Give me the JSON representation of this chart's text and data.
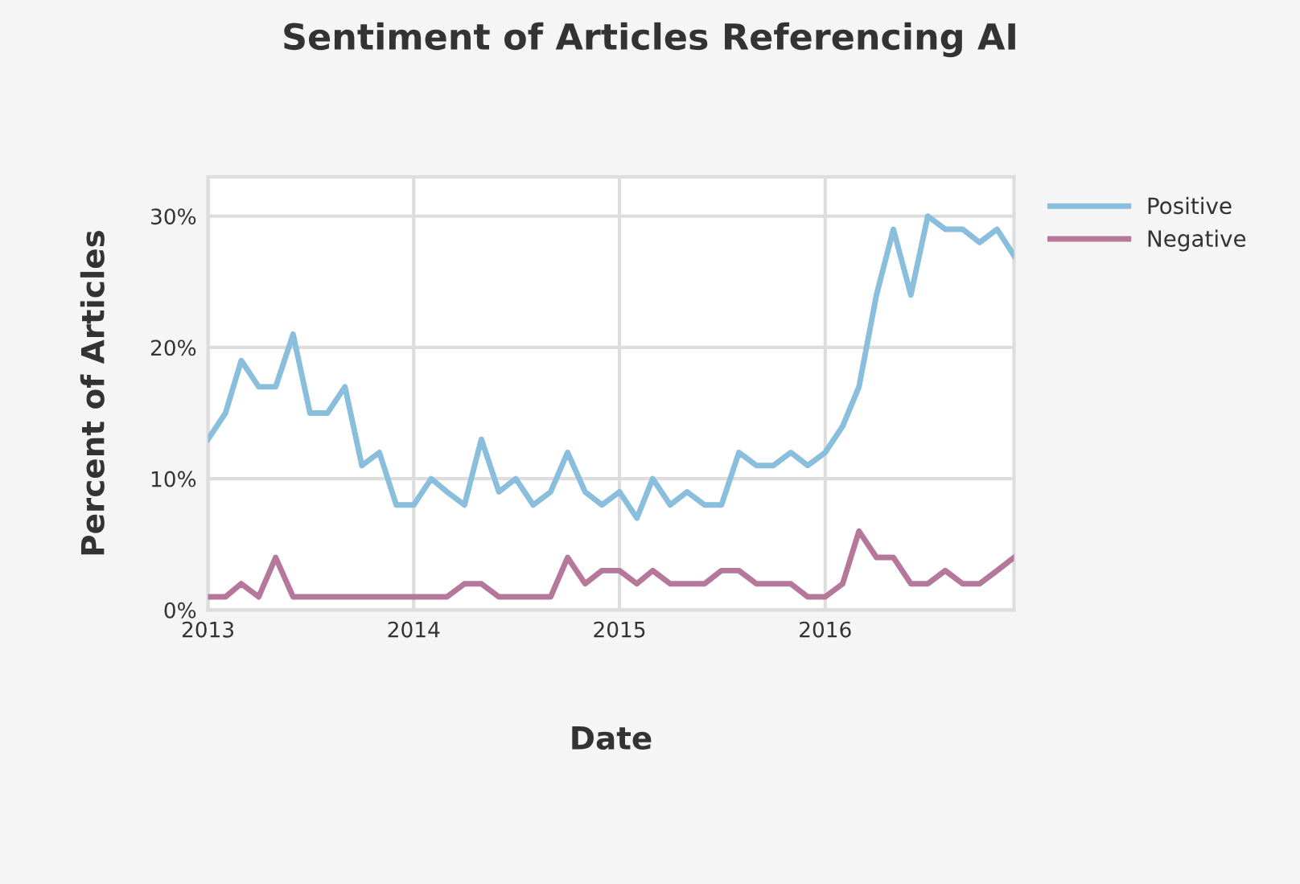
{
  "chart_data": {
    "type": "line",
    "title": "Sentiment of Articles Referencing AI",
    "xlabel": "Date",
    "ylabel": "Percent of Articles",
    "x": [
      "2013-01",
      "2013-02",
      "2013-03",
      "2013-04",
      "2013-05",
      "2013-06",
      "2013-07",
      "2013-08",
      "2013-09",
      "2013-10",
      "2013-11",
      "2013-12",
      "2014-01",
      "2014-02",
      "2014-03",
      "2014-04",
      "2014-05",
      "2014-06",
      "2014-07",
      "2014-08",
      "2014-09",
      "2014-10",
      "2014-11",
      "2014-12",
      "2015-01",
      "2015-02",
      "2015-03",
      "2015-04",
      "2015-05",
      "2015-06",
      "2015-07",
      "2015-08",
      "2015-09",
      "2015-10",
      "2015-11",
      "2015-12",
      "2016-01",
      "2016-02",
      "2016-03",
      "2016-04",
      "2016-05",
      "2016-06",
      "2016-07",
      "2016-08",
      "2016-09",
      "2016-10",
      "2016-11",
      "2016-12"
    ],
    "series": [
      {
        "name": "Positive",
        "color": "#89bedc",
        "values": [
          13,
          15,
          19,
          17,
          17,
          21,
          15,
          15,
          17,
          11,
          12,
          8,
          8,
          10,
          9,
          8,
          13,
          9,
          10,
          8,
          9,
          12,
          9,
          8,
          9,
          7,
          10,
          8,
          9,
          8,
          8,
          12,
          11,
          11,
          12,
          11,
          12,
          14,
          17,
          24,
          29,
          24,
          30,
          29,
          29,
          28,
          29,
          27
        ]
      },
      {
        "name": "Negative",
        "color": "#b5789a",
        "values": [
          1,
          1,
          2,
          1,
          4,
          1,
          1,
          1,
          1,
          1,
          1,
          1,
          1,
          1,
          1,
          2,
          2,
          1,
          1,
          1,
          1,
          4,
          2,
          3,
          3,
          2,
          3,
          2,
          2,
          2,
          3,
          3,
          2,
          2,
          2,
          1,
          1,
          2,
          6,
          4,
          4,
          2,
          2,
          3,
          2,
          2,
          3,
          4
        ]
      }
    ],
    "xlim": [
      "2013-01",
      "2016-12"
    ],
    "xticks": [
      "2013",
      "2014",
      "2015",
      "2016"
    ],
    "ylim": [
      0,
      33
    ],
    "yticks": [
      {
        "value": 0,
        "label": "0%"
      },
      {
        "value": 10,
        "label": "10%"
      },
      {
        "value": 20,
        "label": "20%"
      },
      {
        "value": 30,
        "label": "30%"
      }
    ],
    "grid": true,
    "legend": "right",
    "line_style": "solid",
    "marker": "none"
  }
}
